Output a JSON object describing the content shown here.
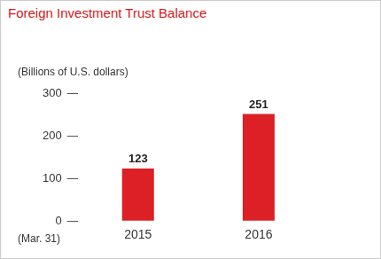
{
  "chart_data": {
    "type": "bar",
    "title": "Foreign Investment Trust Balance",
    "y_label": "(Billions of U.S. dollars)",
    "x_label": "(Mar. 31)",
    "categories": [
      "2015",
      "2016"
    ],
    "values": [
      123,
      251
    ],
    "color": "#dd1f26",
    "ylim": [
      0,
      300
    ],
    "yticks": [
      0,
      100,
      200,
      300
    ],
    "grid": false,
    "data_labels": true
  }
}
